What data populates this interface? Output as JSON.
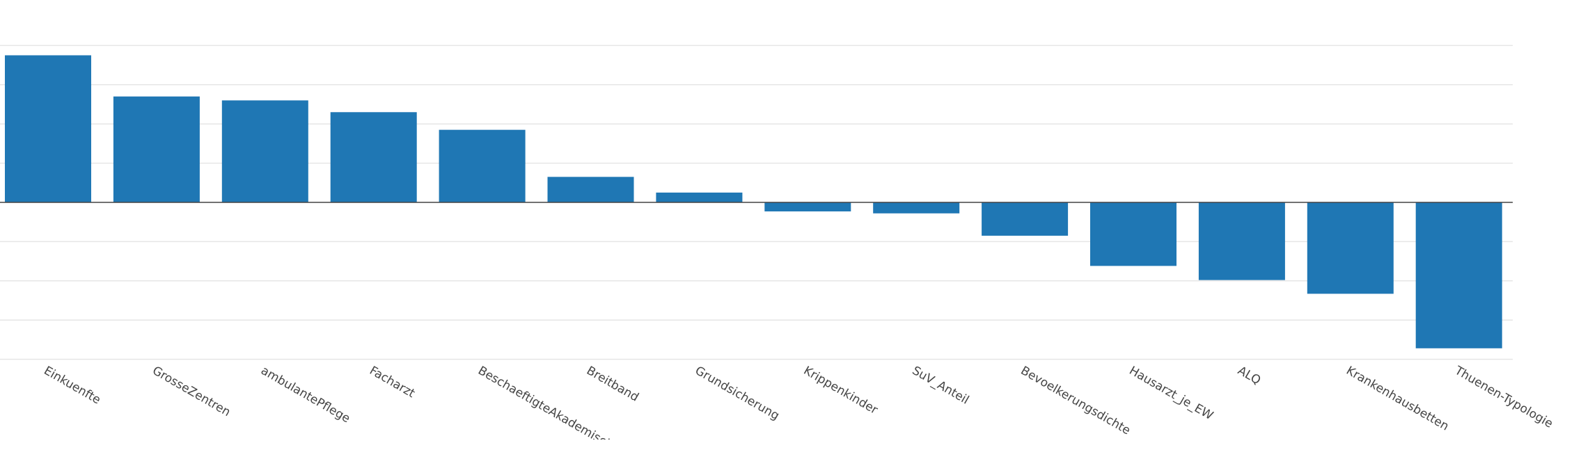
{
  "chart_data": {
    "type": "bar",
    "categories": [
      "Einkuenfte",
      "GrosseZentren",
      "ambulantePflege",
      "Facharzt",
      "BeschaeftigteAkademisch",
      "Breitband",
      "Grundsicherung",
      "Krippenkinder",
      "SuV_Anteil",
      "Bevoelkerungsdichte",
      "Hausarzt_je_EW",
      "ALQ",
      "Krankenhausbetten",
      "Thuenen-Typologie"
    ],
    "values": [
      3.75,
      2.7,
      2.6,
      2.3,
      1.85,
      0.65,
      0.25,
      -0.23,
      -0.28,
      -0.85,
      -1.62,
      -1.98,
      -2.33,
      -3.72
    ],
    "ylim": [
      -4,
      4
    ],
    "grid": true,
    "color": "#1f77b4",
    "title": "",
    "xlabel": "",
    "ylabel": ""
  }
}
